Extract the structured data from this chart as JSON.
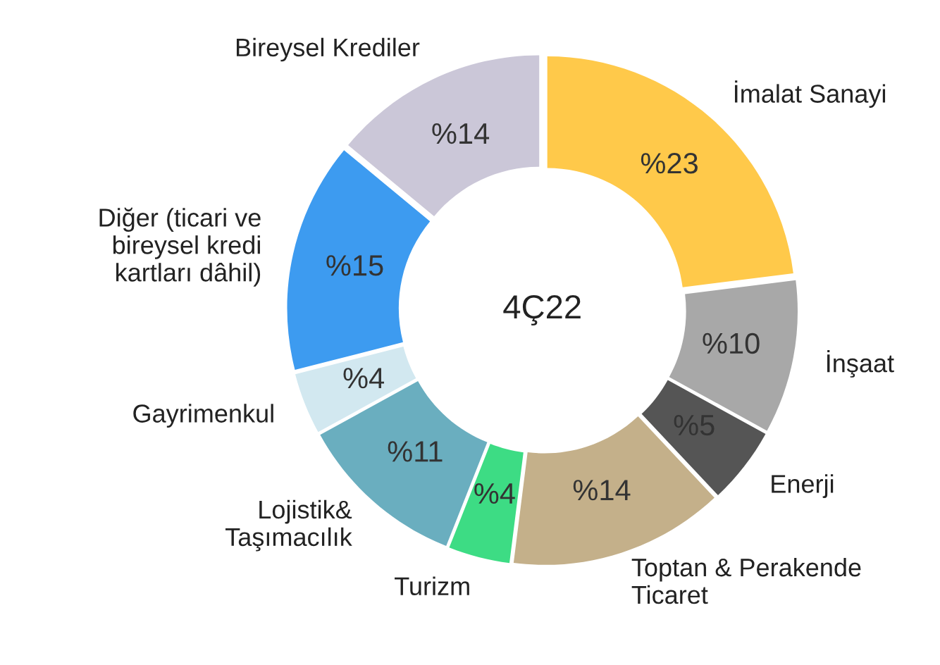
{
  "chart_data": {
    "type": "donut",
    "categories": [
      "İmalat Sanayi",
      "İnşaat",
      "Enerji",
      "Toptan & Perakende\nTicaret",
      "Turizm",
      "Lojistik&\nTaşımacılık",
      "Gayrimenkul",
      "Diğer (ticari ve\nbireysel kredi\nkartları dâhil)",
      "Bireysel Krediler"
    ],
    "values": [
      23,
      10,
      5,
      14,
      4,
      11,
      4,
      15,
      14
    ],
    "value_labels": [
      "%23",
      "%10",
      "%5",
      "%14",
      "%4",
      "%11",
      "%4",
      "%15",
      "%14"
    ],
    "colors": [
      "#ffc94a",
      "#a8a8a8",
      "#555555",
      "#c4b08a",
      "#3ddc84",
      "#6aaebf",
      "#d2e8f0",
      "#3d9bf0",
      "#cbc7d8"
    ],
    "annotations": [
      "4Ç22"
    ]
  }
}
